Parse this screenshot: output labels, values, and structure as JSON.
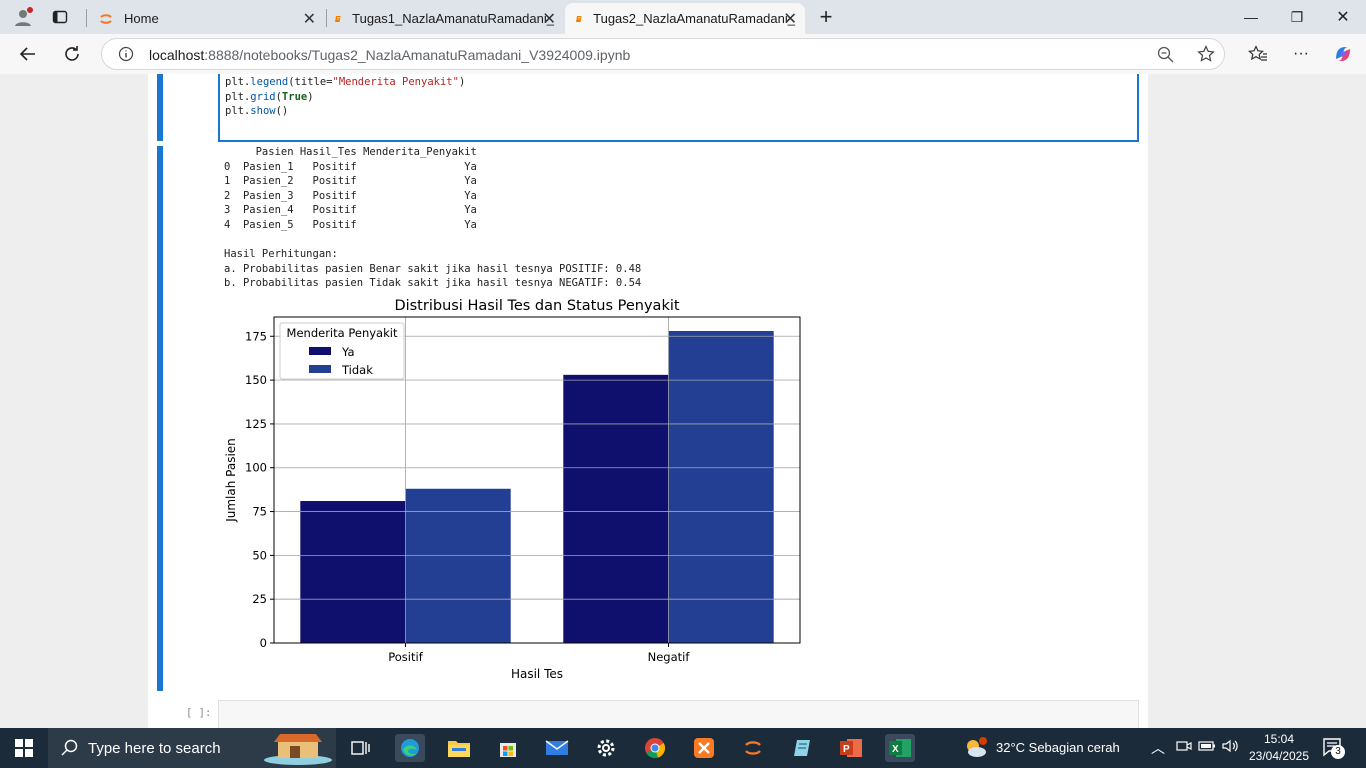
{
  "browser": {
    "tabs": [
      {
        "label": "Home"
      },
      {
        "label": "Tugas1_NazlaAmanatuRamadani_"
      },
      {
        "label": "Tugas2_NazlaAmanatuRamadani_"
      }
    ],
    "url_host": "localhost",
    "url_path": ":8888/notebooks/Tugas2_NazlaAmanatuRamadani_V3924009.ipynb"
  },
  "notebook": {
    "code_lines": [
      {
        "pre": "plt.",
        "fn": "legend",
        "a": "(title=",
        "s": "\"Menderita Penyakit\"",
        "b": ")"
      },
      {
        "pre": "plt.",
        "fn": "grid",
        "a": "(",
        "k": "True",
        "b": ")"
      },
      {
        "pre": "plt.",
        "fn": "show",
        "a": "()"
      }
    ],
    "table_header": "     Pasien Hasil_Tes Menderita_Penyakit",
    "table_rows": [
      "0  Pasien_1   Positif                 Ya",
      "1  Pasien_2   Positif                 Ya",
      "2  Pasien_3   Positif                 Ya",
      "3  Pasien_4   Positif                 Ya",
      "4  Pasien_5   Positif                 Ya"
    ],
    "result_title": "Hasil Perhitungan:",
    "result_a": "a. Probabilitas pasien Benar sakit jika hasil tesnya POSITIF: 0.48",
    "result_b": "b. Probabilitas pasien Tidak sakit jika hasil tesnya NEGATIF: 0.54",
    "empty_prompt": "[ ]:"
  },
  "chart_data": {
    "type": "bar",
    "title": "Distribusi Hasil Tes dan Status Penyakit",
    "xlabel": "Hasil Tes",
    "ylabel": "Jumlah Pasien",
    "categories": [
      "Positif",
      "Negatif"
    ],
    "series": [
      {
        "name": "Ya",
        "values": [
          81,
          153
        ],
        "color": "#0f0f6e"
      },
      {
        "name": "Tidak",
        "values": [
          88,
          178
        ],
        "color": "#233f93"
      }
    ],
    "legend_title": "Menderita Penyakit",
    "legend_position": "top-left",
    "ylim": [
      0,
      186
    ],
    "yticks": [
      0,
      25,
      50,
      75,
      100,
      125,
      150,
      175
    ],
    "grid": true
  },
  "taskbar": {
    "search_placeholder": "Type here to search",
    "weather": "32°C  Sebagian cerah",
    "time": "15:04",
    "date": "23/04/2025",
    "notifications": "3"
  }
}
